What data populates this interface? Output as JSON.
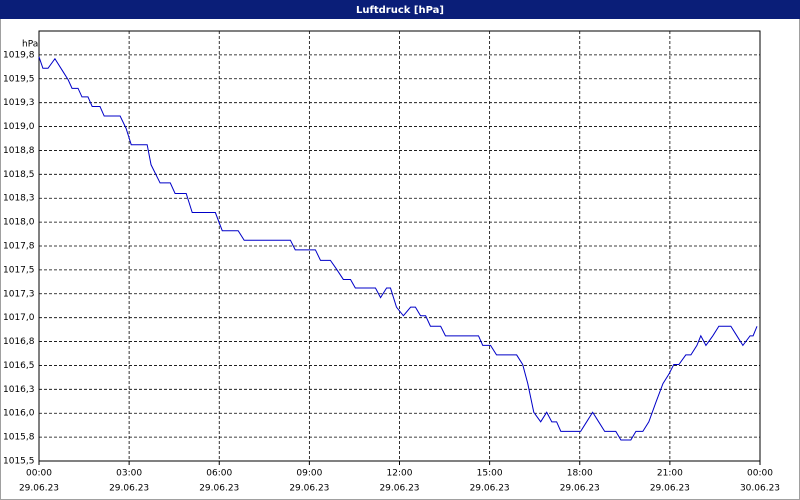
{
  "chart_data": {
    "type": "line",
    "title": "Luftdruck [hPa]",
    "y_unit": "hPa",
    "color": "#0000c8",
    "grid": true,
    "xlim": [
      0,
      24
    ],
    "ylim": [
      1015.5,
      1020.0
    ],
    "xticks": [
      {
        "value": 0,
        "label": "00:00"
      },
      {
        "value": 3,
        "label": "03:00"
      },
      {
        "value": 6,
        "label": "06:00"
      },
      {
        "value": 9,
        "label": "09:00"
      },
      {
        "value": 12,
        "label": "12:00"
      },
      {
        "value": 15,
        "label": "15:00"
      },
      {
        "value": 18,
        "label": "18:00"
      },
      {
        "value": 21,
        "label": "21:00"
      },
      {
        "value": 24,
        "label": "00:00"
      }
    ],
    "xtick_dates": [
      "29.06.23",
      "29.06.23",
      "29.06.23",
      "29.06.23",
      "29.06.23",
      "29.06.23",
      "29.06.23",
      "29.06.23",
      "30.06.23"
    ],
    "yticks": [
      {
        "value": 1015.5,
        "label": "1015,5"
      },
      {
        "value": 1015.75,
        "label": "1015,8"
      },
      {
        "value": 1016.0,
        "label": "1016,0"
      },
      {
        "value": 1016.25,
        "label": "1016,3"
      },
      {
        "value": 1016.5,
        "label": "1016,5"
      },
      {
        "value": 1016.75,
        "label": "1016,8"
      },
      {
        "value": 1017.0,
        "label": "1017,0"
      },
      {
        "value": 1017.25,
        "label": "1017,3"
      },
      {
        "value": 1017.5,
        "label": "1017,5"
      },
      {
        "value": 1017.75,
        "label": "1017,8"
      },
      {
        "value": 1018.0,
        "label": "1018,0"
      },
      {
        "value": 1018.25,
        "label": "1018,3"
      },
      {
        "value": 1018.5,
        "label": "1018,5"
      },
      {
        "value": 1018.75,
        "label": "1018,8"
      },
      {
        "value": 1019.0,
        "label": "1019,0"
      },
      {
        "value": 1019.25,
        "label": "1019,3"
      },
      {
        "value": 1019.5,
        "label": "1019,5"
      },
      {
        "value": 1019.75,
        "label": "1019,8"
      }
    ],
    "x": [
      0,
      0.13,
      0.3,
      0.53,
      0.77,
      0.97,
      1.1,
      1.3,
      1.43,
      1.63,
      1.77,
      2.03,
      2.17,
      2.7,
      2.9,
      3.07,
      3.6,
      3.73,
      4.03,
      4.37,
      4.53,
      4.9,
      5.1,
      5.87,
      6.1,
      6.63,
      6.83,
      8.37,
      8.53,
      9.2,
      9.37,
      9.7,
      9.9,
      10.13,
      10.37,
      10.53,
      11.2,
      11.37,
      11.57,
      11.7,
      11.9,
      12.13,
      12.37,
      12.53,
      12.7,
      12.87,
      13.03,
      13.37,
      13.53,
      14.63,
      14.77,
      15.03,
      15.23,
      15.9,
      16.1,
      16.27,
      16.47,
      16.7,
      16.9,
      17.07,
      17.23,
      17.37,
      18.03,
      18.23,
      18.43,
      18.63,
      18.83,
      19.2,
      19.37,
      19.7,
      19.87,
      20.1,
      20.3,
      20.53,
      20.77,
      20.97,
      21.13,
      21.3,
      21.53,
      21.7,
      21.9,
      22.03,
      22.2,
      22.43,
      22.63,
      23.03,
      23.23,
      23.43,
      23.67,
      23.77,
      23.9
    ],
    "values": [
      1019.73,
      1019.61,
      1019.61,
      1019.71,
      1019.59,
      1019.49,
      1019.4,
      1019.4,
      1019.31,
      1019.31,
      1019.21,
      1019.21,
      1019.11,
      1019.11,
      1018.98,
      1018.81,
      1018.81,
      1018.6,
      1018.41,
      1018.41,
      1018.3,
      1018.3,
      1018.1,
      1018.1,
      1017.91,
      1017.91,
      1017.81,
      1017.81,
      1017.71,
      1017.71,
      1017.6,
      1017.6,
      1017.51,
      1017.4,
      1017.4,
      1017.31,
      1017.31,
      1017.21,
      1017.31,
      1017.31,
      1017.11,
      1017.02,
      1017.11,
      1017.11,
      1017.02,
      1017.02,
      1016.91,
      1016.91,
      1016.81,
      1016.81,
      1016.71,
      1016.71,
      1016.61,
      1016.61,
      1016.51,
      1016.31,
      1016.01,
      1015.91,
      1016.01,
      1015.91,
      1015.91,
      1015.81,
      1015.81,
      1015.91,
      1016.01,
      1015.91,
      1015.81,
      1015.81,
      1015.72,
      1015.72,
      1015.81,
      1015.81,
      1015.91,
      1016.11,
      1016.31,
      1016.41,
      1016.51,
      1016.51,
      1016.61,
      1016.61,
      1016.71,
      1016.81,
      1016.71,
      1016.81,
      1016.91,
      1016.91,
      1016.81,
      1016.71,
      1016.81,
      1016.81,
      1016.91
    ]
  }
}
